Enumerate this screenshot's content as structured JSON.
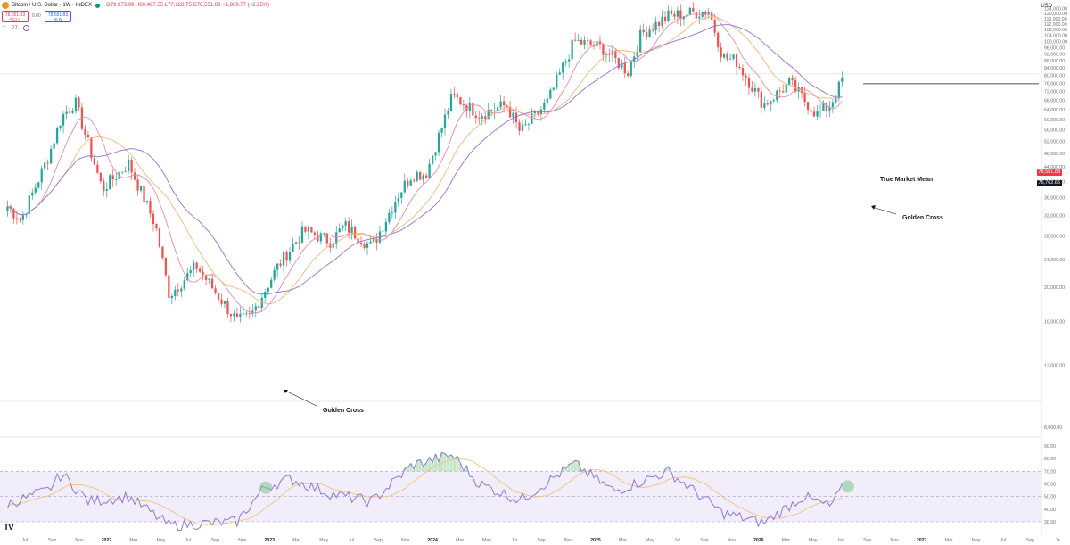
{
  "header": {
    "symbol": "Bitcoin / U.S. Dollar · 1W · INDEX",
    "ohlc": "O79,973.99  H80,467.55  L77,628.75  C78,551.83  −1,809.77 (−2.25%)",
    "sell_price": "78,551.83",
    "sell_label": "SELL",
    "buy_price": "78,551.83",
    "buy_label": "BUY",
    "spread": "0.00",
    "indicator_count": "27",
    "currency": "USD"
  },
  "colors": {
    "up": "#26a69a",
    "down": "#ef5350",
    "ma_fast": "#e58ba6",
    "ma_mid": "#f5b57a",
    "ma_slow": "#8f72d8",
    "rsi": "#8c7ad6",
    "rsi_ma": "#f2c27a",
    "rsi_band": "#f1edfb"
  },
  "annotations": {
    "true_market_mean": "True Market Mean",
    "golden_cross_1": "Golden Cross",
    "golden_cross_2": "Golden Cross",
    "last_price_tag": "78,551.83",
    "mean_price_tag": "75,762.65"
  },
  "chart_data": [
    {
      "type": "candlestick",
      "title": "Bitcoin / U.S. Dollar",
      "x_ticks": [
        "Jul",
        "Sep",
        "Nov",
        "2022",
        "Mar",
        "May",
        "Jul",
        "Sep",
        "Nov",
        "2023",
        "Mar",
        "May",
        "Jul",
        "Sep",
        "Nov",
        "2024",
        "Mar",
        "May",
        "Jul",
        "Sep",
        "Nov",
        "2025",
        "Mar",
        "May",
        "Jul",
        "Sep",
        "Nov",
        "2026",
        "Mar",
        "May",
        "Jul",
        "Sep",
        "Nov",
        "2027",
        "Mar",
        "May",
        "Jul",
        "Sep",
        "Ja"
      ],
      "y_scale": "log",
      "y_ticks": [
        8000,
        12000,
        16000,
        20000,
        24000,
        28000,
        32000,
        36000,
        40000,
        44000,
        48000,
        52000,
        56000,
        60000,
        64000,
        68000,
        72000,
        76000,
        80000,
        84000,
        88000,
        92000,
        96000,
        100000,
        104000,
        108000,
        112000,
        116000,
        120000,
        124000
      ],
      "keyframes": [
        {
          "date": "2021-06",
          "price": 34000
        },
        {
          "date": "2021-07",
          "price": 31000
        },
        {
          "date": "2021-09",
          "price": 47000
        },
        {
          "date": "2021-10",
          "price": 61000
        },
        {
          "date": "2021-11",
          "price": 67000
        },
        {
          "date": "2022-01",
          "price": 38000
        },
        {
          "date": "2022-03",
          "price": 45000
        },
        {
          "date": "2022-05",
          "price": 30000
        },
        {
          "date": "2022-06",
          "price": 19000
        },
        {
          "date": "2022-08",
          "price": 23000
        },
        {
          "date": "2022-11",
          "price": 16000
        },
        {
          "date": "2022-12",
          "price": 16500
        },
        {
          "date": "2023-02",
          "price": 23000
        },
        {
          "date": "2023-04",
          "price": 29000
        },
        {
          "date": "2023-06",
          "price": 27000
        },
        {
          "date": "2023-07",
          "price": 30000
        },
        {
          "date": "2023-09",
          "price": 26000
        },
        {
          "date": "2023-11",
          "price": 37000
        },
        {
          "date": "2023-12",
          "price": 42000
        },
        {
          "date": "2024-01",
          "price": 42000
        },
        {
          "date": "2024-03",
          "price": 70000
        },
        {
          "date": "2024-05",
          "price": 62000
        },
        {
          "date": "2024-07",
          "price": 66000
        },
        {
          "date": "2024-08",
          "price": 55000
        },
        {
          "date": "2024-10",
          "price": 67000
        },
        {
          "date": "2024-12",
          "price": 100000
        },
        {
          "date": "2025-02",
          "price": 96000
        },
        {
          "date": "2025-04",
          "price": 82000
        },
        {
          "date": "2025-05",
          "price": 105000
        },
        {
          "date": "2025-07",
          "price": 118000
        },
        {
          "date": "2025-10",
          "price": 122000
        },
        {
          "date": "2025-11",
          "price": 90000
        },
        {
          "date": "2025-12",
          "price": 88000
        },
        {
          "date": "2026-02",
          "price": 66000
        },
        {
          "date": "2026-04",
          "price": 76000
        },
        {
          "date": "2026-06",
          "price": 62000
        },
        {
          "date": "2026-07",
          "price": 66000
        },
        {
          "date": "2026-08",
          "price": 78551.83
        }
      ],
      "last_price": 78551.83,
      "true_market_mean": 75762.65
    },
    {
      "type": "line",
      "title": "RSI",
      "y_ticks": [
        30,
        40,
        50,
        60,
        70,
        80,
        90
      ],
      "bands": [
        30,
        50,
        70
      ],
      "keyframes": [
        {
          "date": "2021-06",
          "rsi": 44
        },
        {
          "date": "2021-09",
          "rsi": 55
        },
        {
          "date": "2021-10",
          "rsi": 68
        },
        {
          "date": "2021-12",
          "rsi": 46
        },
        {
          "date": "2022-03",
          "rsi": 50
        },
        {
          "date": "2022-06",
          "rsi": 27
        },
        {
          "date": "2022-11",
          "rsi": 30
        },
        {
          "date": "2023-01",
          "rsi": 57
        },
        {
          "date": "2023-03",
          "rsi": 64
        },
        {
          "date": "2023-06",
          "rsi": 52
        },
        {
          "date": "2023-09",
          "rsi": 46
        },
        {
          "date": "2023-12",
          "rsi": 75
        },
        {
          "date": "2024-03",
          "rsi": 83
        },
        {
          "date": "2024-05",
          "rsi": 60
        },
        {
          "date": "2024-08",
          "rsi": 47
        },
        {
          "date": "2024-12",
          "rsi": 76
        },
        {
          "date": "2025-03",
          "rsi": 54
        },
        {
          "date": "2025-07",
          "rsi": 70
        },
        {
          "date": "2025-11",
          "rsi": 37
        },
        {
          "date": "2026-02",
          "rsi": 29
        },
        {
          "date": "2026-05",
          "rsi": 50
        },
        {
          "date": "2026-07",
          "rsi": 42
        },
        {
          "date": "2026-08",
          "rsi": 58
        }
      ]
    }
  ]
}
